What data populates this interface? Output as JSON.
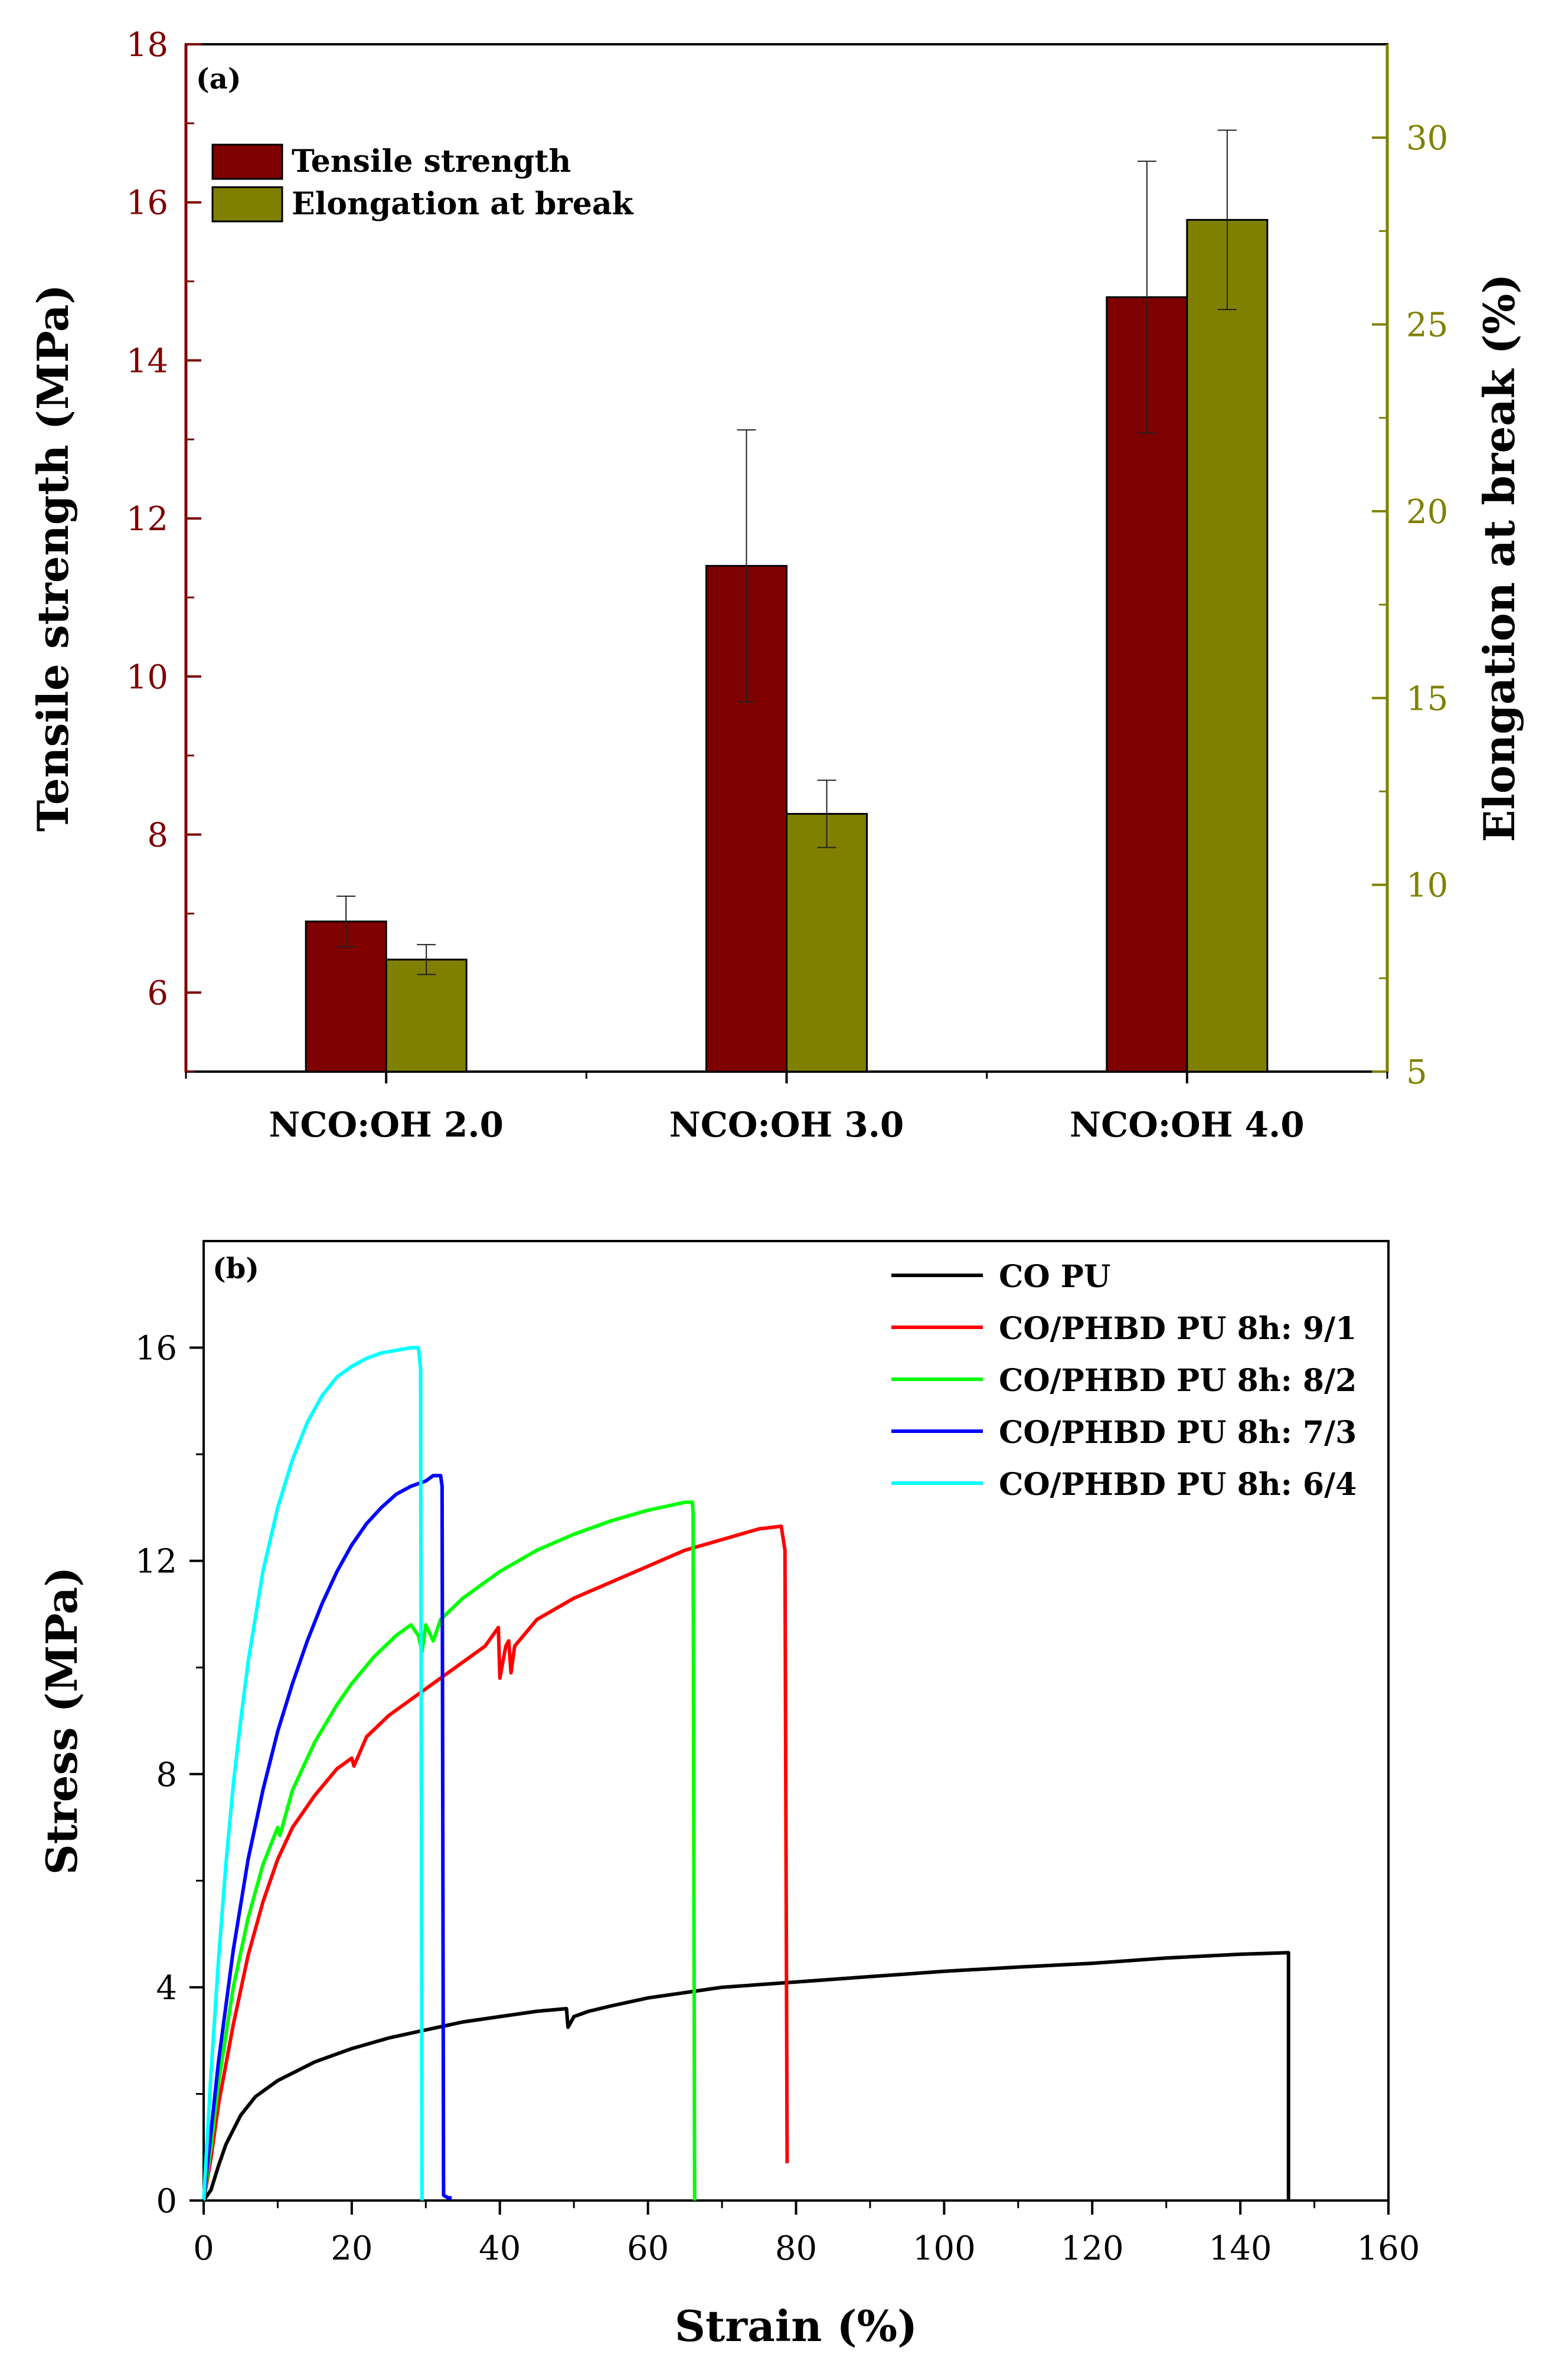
{
  "chart_data": [
    {
      "type": "bar",
      "panel_label": "(a)",
      "categories": [
        "NCO:OH 2.0",
        "NCO:OH 3.0",
        "NCO:OH 4.0"
      ],
      "series": [
        {
          "name": "Tensile strength",
          "axis": "left",
          "color": "#7f0000",
          "values": [
            6.9,
            11.4,
            14.8
          ],
          "errors": [
            0.32,
            1.72,
            1.72
          ]
        },
        {
          "name": "Elongation at break",
          "axis": "right",
          "color": "#808000",
          "values": [
            8.0,
            11.9,
            27.8
          ],
          "errors": [
            0.4,
            0.9,
            2.4
          ]
        }
      ],
      "y_left": {
        "label": "Tensile strength (MPa)",
        "range": [
          5,
          18
        ],
        "ticks": [
          6,
          8,
          10,
          12,
          14,
          16,
          18
        ],
        "color": "#7f0000"
      },
      "y_right": {
        "label": "Elongation at break (%)",
        "range": [
          5,
          32.5
        ],
        "ticks": [
          5,
          10,
          15,
          20,
          25,
          30
        ],
        "color": "#808000"
      },
      "legend_position": "top-left"
    },
    {
      "type": "line",
      "panel_label": "(b)",
      "xlabel": "Strain (%)",
      "ylabel": "Stress (MPa)",
      "xlim": [
        0,
        160
      ],
      "ylim": [
        0,
        18
      ],
      "x_ticks": [
        0,
        20,
        40,
        60,
        80,
        100,
        120,
        140,
        160
      ],
      "y_ticks": [
        0,
        4,
        8,
        12,
        16
      ],
      "legend_position": "top-right",
      "series": [
        {
          "name": "CO PU",
          "color": "#000000",
          "points": [
            [
              0,
              0
            ],
            [
              1,
              0.2
            ],
            [
              2,
              0.65
            ],
            [
              3,
              1.05
            ],
            [
              5,
              1.6
            ],
            [
              7,
              1.95
            ],
            [
              10,
              2.25
            ],
            [
              15,
              2.6
            ],
            [
              20,
              2.85
            ],
            [
              25,
              3.05
            ],
            [
              30,
              3.2
            ],
            [
              35,
              3.35
            ],
            [
              40,
              3.45
            ],
            [
              45,
              3.55
            ],
            [
              49,
              3.6
            ],
            [
              49.2,
              3.25
            ],
            [
              50,
              3.45
            ],
            [
              52,
              3.55
            ],
            [
              55,
              3.65
            ],
            [
              60,
              3.8
            ],
            [
              70,
              4.0
            ],
            [
              80,
              4.1
            ],
            [
              90,
              4.2
            ],
            [
              100,
              4.3
            ],
            [
              110,
              4.38
            ],
            [
              120,
              4.45
            ],
            [
              130,
              4.55
            ],
            [
              140,
              4.62
            ],
            [
              146.5,
              4.65
            ],
            [
              146.5,
              0
            ]
          ]
        },
        {
          "name": "CO/PHBD PU 8h: 9/1",
          "color": "#ff0000",
          "points": [
            [
              0,
              0
            ],
            [
              1,
              0.8
            ],
            [
              2,
              1.8
            ],
            [
              4,
              3.3
            ],
            [
              6,
              4.6
            ],
            [
              8,
              5.6
            ],
            [
              10,
              6.4
            ],
            [
              12,
              7.0
            ],
            [
              15,
              7.6
            ],
            [
              18,
              8.1
            ],
            [
              20,
              8.3
            ],
            [
              20.3,
              8.15
            ],
            [
              22,
              8.7
            ],
            [
              25,
              9.1
            ],
            [
              30,
              9.6
            ],
            [
              35,
              10.1
            ],
            [
              38,
              10.4
            ],
            [
              39.8,
              10.75
            ],
            [
              40,
              9.8
            ],
            [
              40.8,
              10.4
            ],
            [
              41.2,
              10.5
            ],
            [
              41.5,
              9.9
            ],
            [
              42,
              10.4
            ],
            [
              45,
              10.9
            ],
            [
              50,
              11.3
            ],
            [
              55,
              11.6
            ],
            [
              60,
              11.9
            ],
            [
              65,
              12.2
            ],
            [
              70,
              12.4
            ],
            [
              75,
              12.6
            ],
            [
              78,
              12.65
            ],
            [
              78.5,
              12.2
            ],
            [
              78.8,
              0.7
            ]
          ]
        },
        {
          "name": "CO/PHBD PU 8h: 8/2",
          "color": "#00ff00",
          "points": [
            [
              0,
              0
            ],
            [
              1,
              1.0
            ],
            [
              2,
              2.2
            ],
            [
              4,
              4.0
            ],
            [
              6,
              5.3
            ],
            [
              8,
              6.3
            ],
            [
              10,
              7.0
            ],
            [
              10.3,
              6.85
            ],
            [
              12,
              7.7
            ],
            [
              15,
              8.6
            ],
            [
              18,
              9.3
            ],
            [
              20,
              9.7
            ],
            [
              23,
              10.2
            ],
            [
              26,
              10.6
            ],
            [
              28,
              10.8
            ],
            [
              29,
              10.6
            ],
            [
              29.5,
              10.3
            ],
            [
              30,
              10.8
            ],
            [
              31,
              10.5
            ],
            [
              32,
              10.9
            ],
            [
              35,
              11.3
            ],
            [
              40,
              11.8
            ],
            [
              45,
              12.2
            ],
            [
              50,
              12.5
            ],
            [
              55,
              12.75
            ],
            [
              60,
              12.95
            ],
            [
              65,
              13.1
            ],
            [
              66,
              13.1
            ],
            [
              66.1,
              12.9
            ],
            [
              66.3,
              0
            ]
          ]
        },
        {
          "name": "CO/PHBD PU 8h: 7/3",
          "color": "#0000ff",
          "points": [
            [
              0,
              0
            ],
            [
              1,
              1.3
            ],
            [
              2,
              2.6
            ],
            [
              4,
              4.7
            ],
            [
              6,
              6.4
            ],
            [
              8,
              7.7
            ],
            [
              10,
              8.8
            ],
            [
              12,
              9.7
            ],
            [
              14,
              10.5
            ],
            [
              16,
              11.2
            ],
            [
              18,
              11.8
            ],
            [
              20,
              12.3
            ],
            [
              22,
              12.7
            ],
            [
              24,
              13.0
            ],
            [
              26,
              13.25
            ],
            [
              28,
              13.4
            ],
            [
              30,
              13.5
            ],
            [
              31,
              13.6
            ],
            [
              32,
              13.6
            ],
            [
              32.2,
              13.4
            ],
            [
              32.4,
              0.1
            ],
            [
              33,
              0.05
            ],
            [
              33.5,
              0.05
            ]
          ]
        },
        {
          "name": "CO/PHBD PU 8h: 6/4",
          "color": "#00ffff",
          "points": [
            [
              0,
              0
            ],
            [
              0.5,
              1.2
            ],
            [
              1,
              2.4
            ],
            [
              2,
              4.5
            ],
            [
              3,
              6.3
            ],
            [
              4,
              7.8
            ],
            [
              5,
              9.0
            ],
            [
              6,
              10.1
            ],
            [
              8,
              11.8
            ],
            [
              10,
              13.0
            ],
            [
              12,
              13.9
            ],
            [
              14,
              14.6
            ],
            [
              16,
              15.1
            ],
            [
              18,
              15.45
            ],
            [
              20,
              15.65
            ],
            [
              22,
              15.8
            ],
            [
              24,
              15.9
            ],
            [
              26,
              15.95
            ],
            [
              28,
              16.0
            ],
            [
              29,
              16.0
            ],
            [
              29.3,
              15.6
            ],
            [
              29.5,
              0
            ]
          ]
        }
      ]
    }
  ]
}
